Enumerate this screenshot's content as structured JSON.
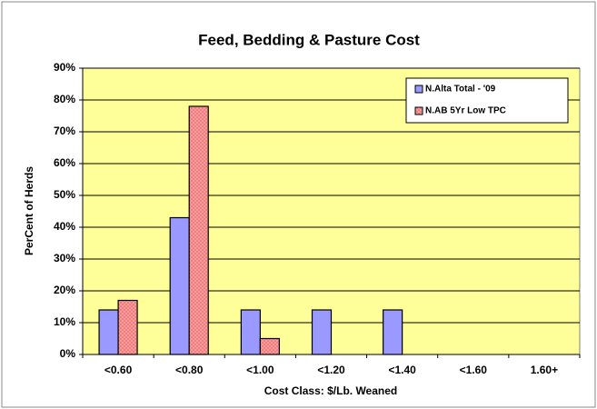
{
  "chart_data": {
    "type": "bar",
    "title": "Feed, Bedding & Pasture Cost",
    "xlabel": "Cost Class: $/Lb. Weaned",
    "ylabel": "PerCent of Herds",
    "categories": [
      "<0.60",
      "<0.80",
      "<1.00",
      "<1.20",
      "<1.40",
      "<1.60",
      "1.60+"
    ],
    "series": [
      {
        "name": "N.Alta Total - '09",
        "color": "#9999ff",
        "values": [
          14,
          43,
          14,
          14,
          14,
          0,
          0
        ]
      },
      {
        "name": "N.AB 5Yr Low TPC",
        "color": "#ff9999",
        "values": [
          17,
          78,
          5,
          0,
          0,
          0,
          0
        ]
      }
    ],
    "ylim": [
      0,
      90
    ],
    "yticks": [
      {
        "value": 0,
        "label": "0%"
      },
      {
        "value": 10,
        "label": "10%"
      },
      {
        "value": 20,
        "label": "20%"
      },
      {
        "value": 30,
        "label": "30%"
      },
      {
        "value": 40,
        "label": "40%"
      },
      {
        "value": 50,
        "label": "50%"
      },
      {
        "value": 60,
        "label": "60%"
      },
      {
        "value": 70,
        "label": "70%"
      },
      {
        "value": 80,
        "label": "80%"
      },
      {
        "value": 90,
        "label": "90%"
      }
    ],
    "grid": true,
    "legend": "upper right",
    "background": "#ffff99"
  }
}
